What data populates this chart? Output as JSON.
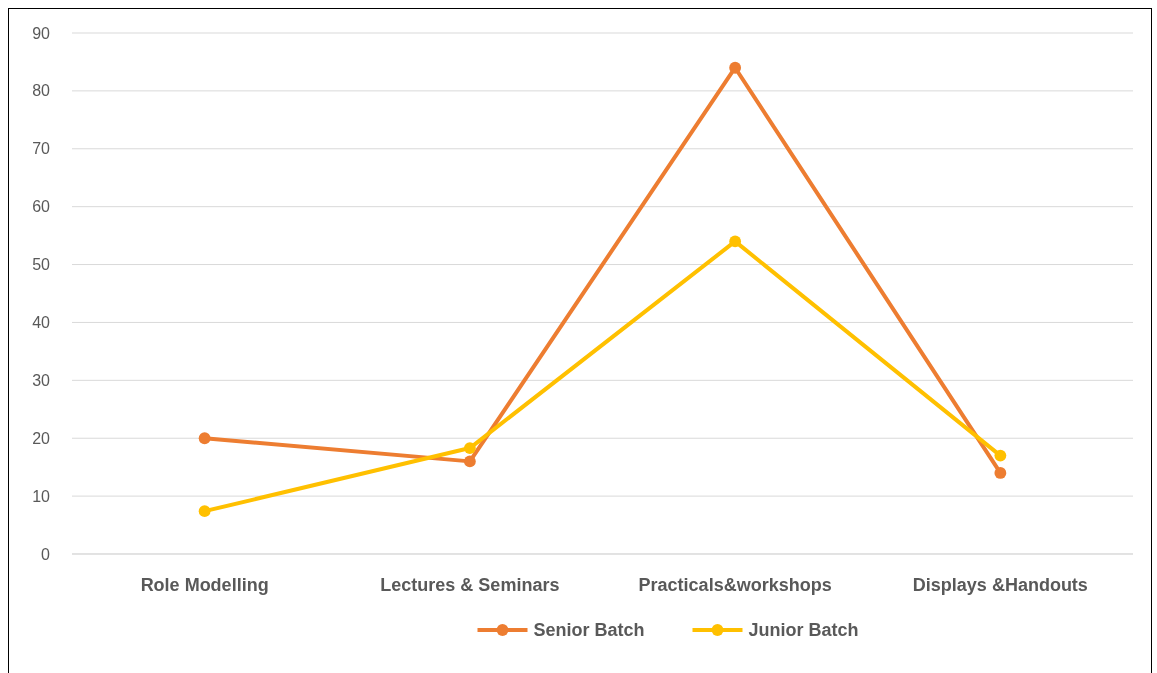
{
  "chart_data": {
    "type": "line",
    "categories": [
      "Role Modelling",
      "Lectures & Seminars",
      "Practicals&workshops",
      "Displays &Handouts"
    ],
    "series": [
      {
        "name": "Senior Batch",
        "color": "#ed7d31",
        "values": [
          20,
          16,
          84,
          14
        ]
      },
      {
        "name": "Junior Batch",
        "color": "#ffc000",
        "values": [
          7.4,
          18.3,
          54,
          17
        ]
      }
    ],
    "ylim": [
      0,
      90
    ],
    "yticks": [
      0,
      10,
      20,
      30,
      40,
      50,
      60,
      70,
      80,
      90
    ],
    "grid": "y",
    "legend": "bottom",
    "marker": "circle"
  }
}
